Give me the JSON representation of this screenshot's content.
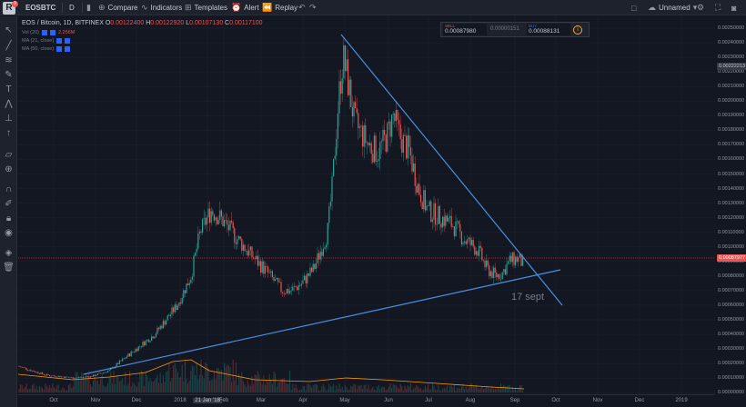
{
  "toolbar": {
    "symbol": "EOSBTC",
    "interval": "D",
    "compare": "Compare",
    "indicators": "Indicators",
    "templates": "Templates",
    "alert": "Alert",
    "replay": "Replay",
    "layout_name": "Unnamed",
    "notification_count": "9"
  },
  "legend": {
    "title": "EOS / Bitcoin, 1D, BITFINEX",
    "o_label": "O",
    "o_value": "0.00122400",
    "h_label": "H",
    "h_value": "0.00122920",
    "l_label": "L",
    "l_value": "0.00107130",
    "c_label": "C",
    "c_value": "0.00117100",
    "vol_label": "Vol (20)",
    "vol_value": "2.256M",
    "ind1": "MA (21, close)",
    "ind2": "MA (50, close)"
  },
  "trade_panel": {
    "sell_label": "SELL",
    "sell_price": "0.00087980",
    "spread": "0.00000151",
    "buy_label": "BUY",
    "buy_price": "0.00088131"
  },
  "annotation": "17 sept",
  "price_axis": {
    "labels": [
      "0.00250000",
      "0.00240000",
      "0.00230000",
      "0.00220000",
      "0.00210000",
      "0.00200000",
      "0.00190000",
      "0.00180000",
      "0.00170000",
      "0.00160000",
      "0.00150000",
      "0.00140000",
      "0.00130000",
      "0.00120000",
      "0.00110000",
      "0.00100000",
      "0.00090000",
      "0.00080000",
      "0.00070000",
      "0.00060000",
      "0.00050000",
      "0.00040000",
      "0.00030000",
      "0.00020000",
      "0.00010000",
      "0.00000000"
    ],
    "top_tag": "0.00222213",
    "current_tag": "0.00087977"
  },
  "time_axis": {
    "labels": [
      "Oct",
      "Nov",
      "Dec",
      "2018",
      "21 Jan '18",
      "Feb",
      "Mar",
      "Apr",
      "May",
      "Jun",
      "Jul",
      "Aug",
      "Sep",
      "Oct",
      "Nov",
      "Dec",
      "2019"
    ]
  },
  "colors": {
    "background": "#131722",
    "up": "#26a69a",
    "down": "#ef5350",
    "trendline": "#4a90e2",
    "volume_ma": "#ff9800"
  },
  "chart_data": {
    "type": "candlestick",
    "title": "EOS / Bitcoin, 1D, BITFINEX",
    "ylim": [
      0,
      0.0026
    ],
    "x": [
      "Oct",
      "Nov",
      "Dec",
      "2018",
      "Feb",
      "Mar",
      "Apr",
      "May",
      "Jun",
      "Jul",
      "Aug",
      "Sep"
    ],
    "close_approx": [
      0.00018,
      0.0001,
      0.00035,
      0.00085,
      0.00125,
      0.0007,
      0.0008,
      0.0023,
      0.0018,
      0.00125,
      0.0009,
      0.00088
    ]
  }
}
